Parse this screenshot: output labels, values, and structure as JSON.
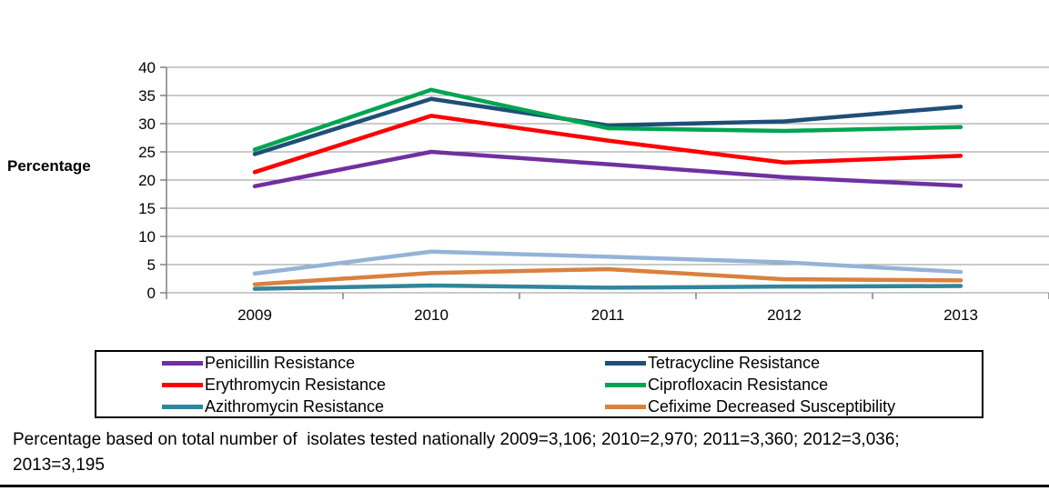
{
  "chart_data": {
    "type": "line",
    "title": "",
    "xlabel": "",
    "ylabel": "Percentage",
    "categories": [
      "2009",
      "2010",
      "2011",
      "2012",
      "2013"
    ],
    "y_ticks": [
      0,
      5,
      10,
      15,
      20,
      25,
      30,
      35,
      40
    ],
    "ylim": [
      0,
      40
    ],
    "grid": "horizontal",
    "legend_position": "bottom boxed, two columns",
    "series": [
      {
        "name": "Penicillin Resistance",
        "color": "#7030A0",
        "values": [
          18.9,
          25.0,
          22.8,
          20.5,
          19.0
        ],
        "in_legend": true
      },
      {
        "name": "Tetracycline Resistance",
        "color": "#1F4E79",
        "values": [
          24.6,
          34.4,
          29.7,
          30.4,
          33.0
        ],
        "in_legend": true
      },
      {
        "name": "Erythromycin Resistance",
        "color": "#FF0000",
        "values": [
          21.4,
          31.4,
          27.0,
          23.1,
          24.3
        ],
        "in_legend": true
      },
      {
        "name": "Ciprofloxacin Resistance",
        "color": "#00A550",
        "values": [
          25.4,
          36.0,
          29.2,
          28.7,
          29.4
        ],
        "in_legend": true
      },
      {
        "name": "Azithromycin Resistance",
        "color": "#31859C",
        "values": [
          0.7,
          1.3,
          0.9,
          1.1,
          1.2
        ],
        "in_legend": true
      },
      {
        "name": "Cefixime Decreased Susceptibility",
        "color": "#D9813F",
        "values": [
          1.5,
          3.5,
          4.2,
          2.4,
          2.2
        ],
        "in_legend": true
      },
      {
        "name": "",
        "color": "#95B3D7",
        "values": [
          3.4,
          7.3,
          6.4,
          5.4,
          3.7
        ],
        "in_legend": false
      }
    ],
    "draw_order": [
      6,
      0,
      1,
      2,
      3,
      4,
      5
    ],
    "legend_columns": [
      [
        0,
        2,
        4
      ],
      [
        1,
        3,
        5
      ]
    ],
    "axis_color": "#808080",
    "gridline_color": "#969696"
  },
  "footnote": {
    "lines": [
      "Percentage based on total number of  isolates tested nationally 2009=3,106; 2010=2,970; 2011=3,360; 2012=3,036;",
      "2013=3,195"
    ]
  }
}
